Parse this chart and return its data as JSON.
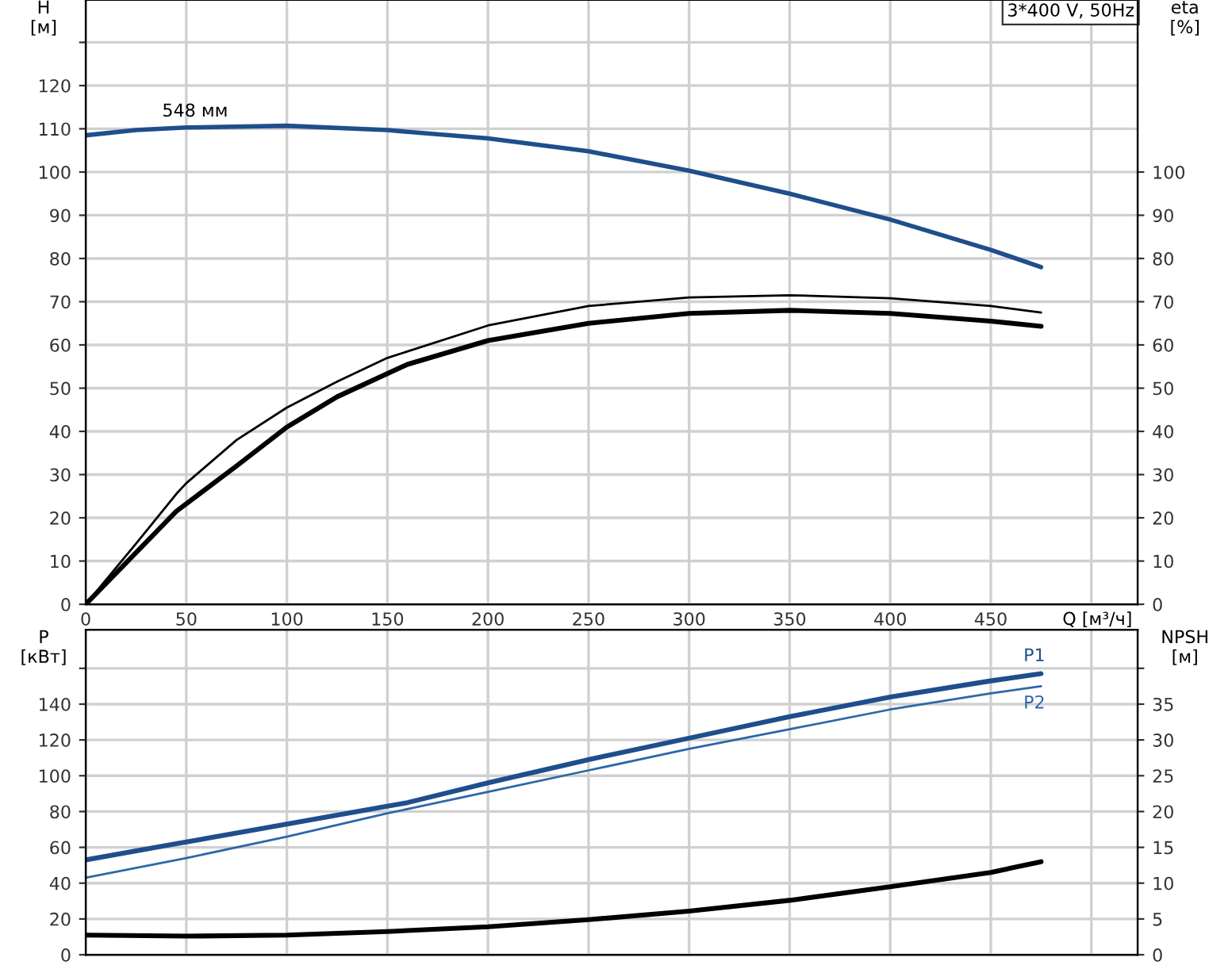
{
  "chart_data": [
    {
      "type": "line",
      "xlabel": "Q [м³/ч]",
      "ylabel": "H\n[м]",
      "y2label": "eta\n[%]",
      "annotations": [
        "3*400 V, 50Hz",
        {
          "text": "548 мм",
          "x": 38,
          "y": 112
        }
      ],
      "xlim": [
        0,
        523
      ],
      "xticks": [
        0,
        50,
        100,
        150,
        200,
        250,
        300,
        350,
        400,
        450,
        {
          "value": 500,
          "label": null
        }
      ],
      "ylim": [
        0,
        139.8
      ],
      "yticks": [
        0,
        10,
        20,
        30,
        40,
        50,
        60,
        70,
        80,
        90,
        100,
        110,
        120,
        {
          "value": 130,
          "label": null
        }
      ],
      "y2lim": [
        0,
        139.8
      ],
      "y2ticks": [
        0,
        10,
        20,
        30,
        40,
        50,
        60,
        70,
        80,
        90,
        100
      ],
      "grid": true,
      "legend": false,
      "marker": "none",
      "line_style": "solid",
      "series": [
        {
          "color": "#1f4e8c",
          "x": [
            0,
            25,
            50,
            100,
            150,
            200,
            250,
            300,
            350,
            400,
            450,
            475
          ],
          "values": [
            108.5,
            109.7,
            110.3,
            110.7,
            109.7,
            107.8,
            104.8,
            100.3,
            95.0,
            89.0,
            82,
            78
          ]
        },
        {
          "color": "#000000",
          "axis": "y2",
          "x": [
            0,
            25,
            45,
            50,
            75,
            100,
            125,
            150,
            200,
            250,
            300,
            350,
            400,
            450,
            475
          ],
          "values": [
            0,
            14,
            25.5,
            28,
            38,
            45.5,
            51.5,
            57,
            64.5,
            69,
            71,
            71.5,
            70.8,
            69,
            67.5
          ]
        },
        {
          "color": "#000000",
          "axis": "y2",
          "x": [
            0,
            45,
            75,
            100,
            125,
            160,
            200,
            250,
            300,
            350,
            400,
            450,
            475
          ],
          "values": [
            0,
            21.5,
            32,
            41,
            48,
            55.5,
            61,
            65,
            67.3,
            68,
            67.3,
            65.5,
            64.3
          ]
        }
      ]
    },
    {
      "type": "line",
      "ylabel": "P\n[кВт]",
      "y2label": "NPSH\n[м]",
      "tick_labels": "y",
      "xlim": [
        0,
        523
      ],
      "xticks": [
        0,
        50,
        100,
        150,
        200,
        250,
        300,
        350,
        400,
        450,
        500
      ],
      "ylim": [
        0,
        181.6
      ],
      "yticks": [
        0,
        20,
        40,
        60,
        80,
        100,
        120,
        140,
        {
          "value": 160,
          "label": null
        }
      ],
      "y2lim": [
        0,
        45.4
      ],
      "y2ticks": [
        0,
        5,
        10,
        15,
        20,
        25,
        30,
        35,
        {
          "value": 40,
          "label": null
        }
      ],
      "grid": true,
      "legend": false,
      "marker": "none",
      "line_style": "solid",
      "series": [
        {
          "name": "P1",
          "color": "#1f4e8c",
          "x": [
            0,
            45,
            100,
            160,
            200,
            250,
            300,
            350,
            400,
            450,
            475
          ],
          "values": [
            53,
            62,
            73,
            85,
            96,
            109,
            121,
            133,
            144,
            153,
            157
          ]
        },
        {
          "name": "P2",
          "color": "#2e67a8",
          "x": [
            0,
            50,
            100,
            150,
            200,
            250,
            300,
            350,
            400,
            450,
            475
          ],
          "values": [
            43,
            54,
            66,
            79,
            91,
            103,
            115,
            126,
            137,
            146,
            150
          ]
        },
        {
          "color": "#000000",
          "axis": "y2",
          "x": [
            0,
            50,
            100,
            150,
            200,
            250,
            300,
            350,
            400,
            450,
            475
          ],
          "values": [
            2.75,
            2.6,
            2.75,
            3.25,
            3.9,
            4.9,
            6.1,
            7.6,
            9.5,
            11.5,
            13
          ]
        }
      ]
    }
  ]
}
